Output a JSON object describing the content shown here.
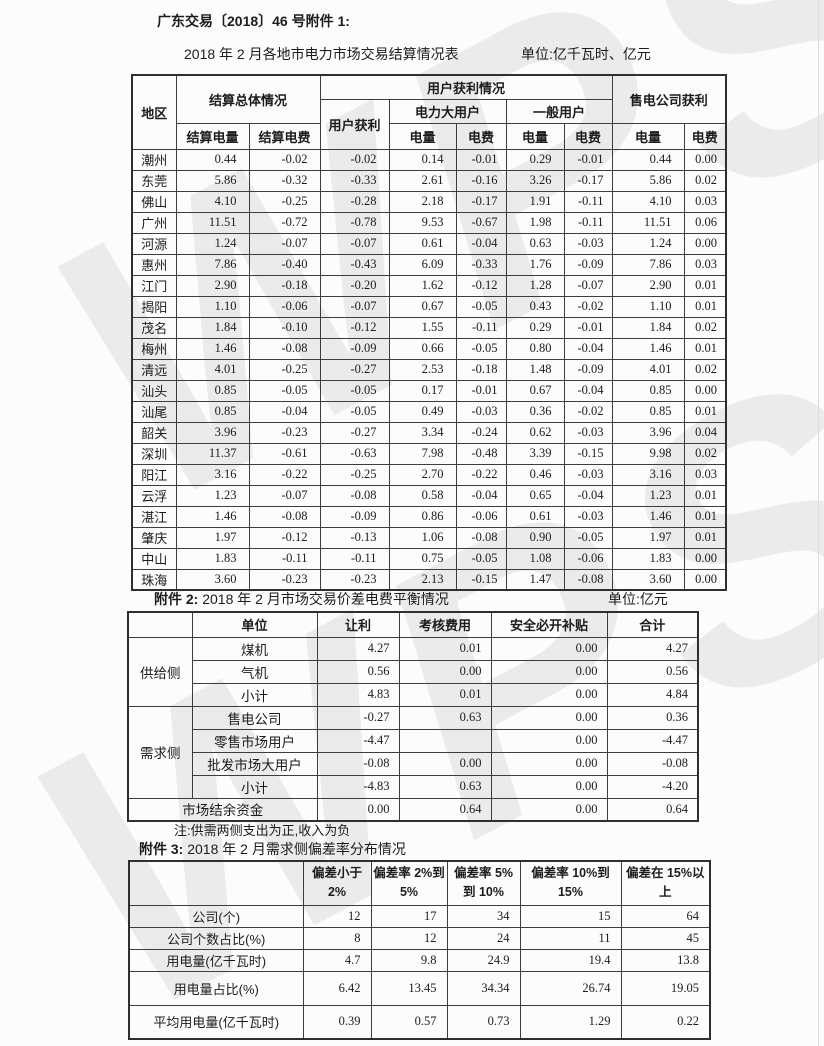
{
  "page": {
    "doc_ref": "广东交易〔2018〕46 号附件 1:",
    "watermark": "WPS"
  },
  "table1": {
    "title": "2018 年 2 月各地市电力市场交易结算情况表",
    "unit": "单位:亿千瓦时、亿元",
    "headers": {
      "region": "地区",
      "settlement_group": "结算总体情况",
      "settlement_volume": "结算电量",
      "settlement_fee": "结算电费",
      "user_profit_group": "用户获利情况",
      "user_profit": "用户获利",
      "large_user_group": "电力大用户",
      "general_user_group": "一般用户",
      "retail_company_group": "售电公司获利",
      "volume": "电量",
      "fee": "电费"
    },
    "rows": [
      [
        "潮州",
        "0.44",
        "-0.02",
        "-0.02",
        "0.14",
        "-0.01",
        "0.29",
        "-0.01",
        "0.44",
        "0.00"
      ],
      [
        "东莞",
        "5.86",
        "-0.32",
        "-0.33",
        "2.61",
        "-0.16",
        "3.26",
        "-0.17",
        "5.86",
        "0.02"
      ],
      [
        "佛山",
        "4.10",
        "-0.25",
        "-0.28",
        "2.18",
        "-0.17",
        "1.91",
        "-0.11",
        "4.10",
        "0.03"
      ],
      [
        "广州",
        "11.51",
        "-0.72",
        "-0.78",
        "9.53",
        "-0.67",
        "1.98",
        "-0.11",
        "11.51",
        "0.06"
      ],
      [
        "河源",
        "1.24",
        "-0.07",
        "-0.07",
        "0.61",
        "-0.04",
        "0.63",
        "-0.03",
        "1.24",
        "0.00"
      ],
      [
        "惠州",
        "7.86",
        "-0.40",
        "-0.43",
        "6.09",
        "-0.33",
        "1.76",
        "-0.09",
        "7.86",
        "0.03"
      ],
      [
        "江门",
        "2.90",
        "-0.18",
        "-0.20",
        "1.62",
        "-0.12",
        "1.28",
        "-0.07",
        "2.90",
        "0.01"
      ],
      [
        "揭阳",
        "1.10",
        "-0.06",
        "-0.07",
        "0.67",
        "-0.05",
        "0.43",
        "-0.02",
        "1.10",
        "0.01"
      ],
      [
        "茂名",
        "1.84",
        "-0.10",
        "-0.12",
        "1.55",
        "-0.11",
        "0.29",
        "-0.01",
        "1.84",
        "0.02"
      ],
      [
        "梅州",
        "1.46",
        "-0.08",
        "-0.09",
        "0.66",
        "-0.05",
        "0.80",
        "-0.04",
        "1.46",
        "0.01"
      ],
      [
        "清远",
        "4.01",
        "-0.25",
        "-0.27",
        "2.53",
        "-0.18",
        "1.48",
        "-0.09",
        "4.01",
        "0.02"
      ],
      [
        "汕头",
        "0.85",
        "-0.05",
        "-0.05",
        "0.17",
        "-0.01",
        "0.67",
        "-0.04",
        "0.85",
        "0.00"
      ],
      [
        "汕尾",
        "0.85",
        "-0.04",
        "-0.05",
        "0.49",
        "-0.03",
        "0.36",
        "-0.02",
        "0.85",
        "0.01"
      ],
      [
        "韶关",
        "3.96",
        "-0.23",
        "-0.27",
        "3.34",
        "-0.24",
        "0.62",
        "-0.03",
        "3.96",
        "0.04"
      ],
      [
        "深圳",
        "11.37",
        "-0.61",
        "-0.63",
        "7.98",
        "-0.48",
        "3.39",
        "-0.15",
        "9.98",
        "0.02"
      ],
      [
        "阳江",
        "3.16",
        "-0.22",
        "-0.25",
        "2.70",
        "-0.22",
        "0.46",
        "-0.03",
        "3.16",
        "0.03"
      ],
      [
        "云浮",
        "1.23",
        "-0.07",
        "-0.08",
        "0.58",
        "-0.04",
        "0.65",
        "-0.04",
        "1.23",
        "0.01"
      ],
      [
        "湛江",
        "1.46",
        "-0.08",
        "-0.09",
        "0.86",
        "-0.06",
        "0.61",
        "-0.03",
        "1.46",
        "0.01"
      ],
      [
        "肇庆",
        "1.97",
        "-0.12",
        "-0.13",
        "1.06",
        "-0.08",
        "0.90",
        "-0.05",
        "1.97",
        "0.01"
      ],
      [
        "中山",
        "1.83",
        "-0.11",
        "-0.11",
        "0.75",
        "-0.05",
        "1.08",
        "-0.06",
        "1.83",
        "0.00"
      ],
      [
        "珠海",
        "3.60",
        "-0.23",
        "-0.23",
        "2.13",
        "-0.15",
        "1.47",
        "-0.08",
        "3.60",
        "0.00"
      ]
    ]
  },
  "table2": {
    "caption_label": "附件 2:",
    "caption_text": "2018 年 2 月市场交易价差电费平衡情况",
    "unit": "单位:亿元",
    "col_headers": [
      "",
      "单位",
      "让利",
      "考核费用",
      "安全必开补贴",
      "合计"
    ],
    "supply_label": "供给侧",
    "demand_label": "需求侧",
    "supply_rows": [
      [
        "煤机",
        "4.27",
        "0.01",
        "0.00",
        "4.27"
      ],
      [
        "气机",
        "0.56",
        "0.00",
        "0.00",
        "0.56"
      ],
      [
        "小计",
        "4.83",
        "0.01",
        "0.00",
        "4.84"
      ]
    ],
    "demand_rows": [
      [
        "售电公司",
        "-0.27",
        "0.63",
        "0.00",
        "0.36"
      ],
      [
        "零售市场用户",
        "-4.47",
        "",
        "0.00",
        "-4.47"
      ],
      [
        "批发市场大用户",
        "-0.08",
        "0.00",
        "0.00",
        "-0.08"
      ],
      [
        "小计",
        "-4.83",
        "0.63",
        "0.00",
        "-4.20"
      ]
    ],
    "footer_row": [
      "市场结余资金",
      "0.00",
      "0.64",
      "0.00",
      "0.64"
    ]
  },
  "note": "注:供需两侧支出为正,收入为负",
  "table3": {
    "caption_label": "附件 3:",
    "caption_text": "2018 年 2 月需求侧偏差率分布情况",
    "col_headers": [
      "",
      "偏差小于 2%",
      "偏差率 2%到 5%",
      "偏差率 5%到 10%",
      "偏差率 10%到 15%",
      "偏差在 15%以上"
    ],
    "rows": [
      [
        "公司(个)",
        "12",
        "17",
        "34",
        "15",
        "64"
      ],
      [
        "公司个数占比(%)",
        "8",
        "12",
        "24",
        "11",
        "45"
      ],
      [
        "用电量(亿千瓦时)",
        "4.7",
        "9.8",
        "24.9",
        "19.4",
        "13.8"
      ],
      [
        "用电量占比(%)",
        "6.42",
        "13.45",
        "34.34",
        "26.74",
        "19.05"
      ],
      [
        "平均用电量(亿千瓦时)",
        "0.39",
        "0.57",
        "0.73",
        "1.29",
        "0.22"
      ]
    ]
  }
}
